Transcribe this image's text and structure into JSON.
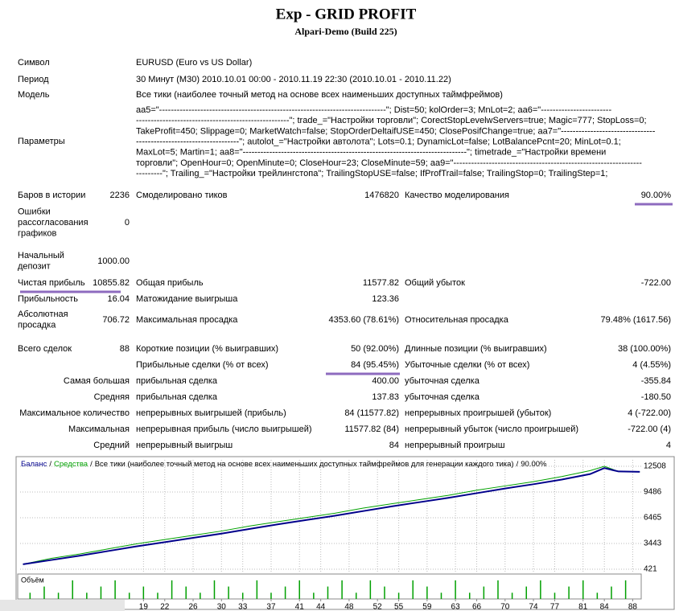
{
  "header": {
    "title": "Exp - GRID PROFIT",
    "subtitle": "Alpari-Demo (Build 225)"
  },
  "rows": [
    {
      "l1": "Символ",
      "v": "EURUSD (Euro vs US Dollar)"
    },
    {
      "l1": "Период",
      "v": "30 Минут (M30) 2010.10.01 00:00 - 2010.11.19 22:30 (2010.10.01 - 2010.11.22)"
    },
    {
      "l1": "Модель",
      "v": "Все тики (наиболее точный метод на основе всех наименьших доступных таймфреймов)"
    },
    {
      "l1": "Параметры",
      "lines": [
        "aa5=\"-----------------------------------------------------------------------------\"; Dist=50; kolOrder=3; MnLot=2; aa6=\"------------------------",
        "----------------------------------------------------\"; trade_=\"Настройки торговли\"; CorectStopLevelwServers=true; Magic=777; StopLoss=0;",
        "TakeProfit=450; Slippage=0; MarketWatch=false; StopOrderDeltaifUSE=450; ClosePosifChange=true; aa7=\"--------------------------------",
        "-----------------------------------\"; autolot_=\"Настройки автолота\"; Lots=0.1; DynamicLot=false; LotBalancePcnt=20; MinLot=0.1;",
        "MaxLot=5; Martin=1; aa8=\"----------------------------------------------------------------------------\"; timetrade_=\"Настройки времени",
        "торговли\"; OpenHour=0; OpenMinute=0; CloseHour=23; CloseMinute=59; aa9=\"----------------------------------------------------------------",
        "---------\"; Trailing_=\"Настройки трейлингстопа\"; TrailingStopUSE=false; IfProfTrail=false; TrailingStop=0; TrailingStep=1;"
      ]
    },
    {
      "l1": "Баров в истории",
      "v1": "2236",
      "l2": "Смоделировано тиков",
      "v2": "1476820",
      "l3": "Качество моделирования",
      "v3": "90.00%"
    },
    {
      "l1": [
        "Ошибки",
        "рассогласования",
        "графиков"
      ],
      "v1": "0"
    },
    {
      "l1": [
        "Начальный",
        "депозит"
      ],
      "v1": "1000.00"
    },
    {
      "l1": "Чистая прибыль",
      "v1": "10855.82",
      "l2": "Общая прибыль",
      "v2": "11577.82",
      "l3": "Общий убыток",
      "v3": "-722.00"
    },
    {
      "l1": "Прибыльность",
      "v1": "16.04",
      "l2": "Матожидание выигрыша",
      "v2": "123.36"
    },
    {
      "l1": [
        "Абсолютная",
        "просадка"
      ],
      "v1": "706.72",
      "l2": "Максимальная просадка",
      "v2": "4353.60 (78.61%)",
      "l3": "Относительная просадка",
      "v3": "79.48% (1617.56)"
    },
    {
      "l1": "Всего сделок",
      "v1": "88",
      "l2": "Короткие позиции (% выигравших)",
      "v2": "50 (92.00%)",
      "l3": "Длинные позиции (% выигравших)",
      "v3": "38 (100.00%)"
    },
    {
      "l2": "Прибыльные сделки (% от всех)",
      "v2": "84 (95.45%)",
      "l3": "Убыточные сделки (% от всех)",
      "v3": "4 (4.55%)"
    },
    {
      "l1": "Самая большая",
      "l2": "прибыльная сделка",
      "v2": "400.00",
      "l3": "убыточная сделка",
      "v3": "-355.84"
    },
    {
      "l1": "Средняя",
      "l2": "прибыльная сделка",
      "v2": "137.83",
      "l3": "убыточная сделка",
      "v3": "-180.50"
    },
    {
      "l1": "Максимальное количество",
      "l2": "непрерывных выигрышей (прибыль)",
      "v2": "84 (11577.82)",
      "l3": "непрерывных проигрышей (убыток)",
      "v3": "4 (-722.00)"
    },
    {
      "l1": "Максимальная",
      "l2": "непрерывная прибыль (число выигрышей)",
      "v2": "11577.82 (84)",
      "l3": "непрерывный убыток (число проигрышей)",
      "v3": "-722.00 (4)"
    },
    {
      "l1": "Средний",
      "l2": "непрерывный выигрыш",
      "v2": "84",
      "l3": "непрерывный проигрыш",
      "v3": "4"
    }
  ],
  "chart_data": {
    "type": "line",
    "separator": "/",
    "description": "Все тики (наиболее точный метод на основе всех наименьших доступных таймфреймов для генерации каждого тика)",
    "quality": "90.00%",
    "x": [
      2,
      6,
      10,
      14,
      18,
      22,
      26,
      30,
      34,
      38,
      42,
      46,
      50,
      54,
      58,
      62,
      66,
      70,
      74,
      78,
      82,
      84,
      86,
      89
    ],
    "series": [
      {
        "name": "Баланс",
        "color": "#00008b",
        "values": [
          1000,
          1500,
          2000,
          2550,
          3100,
          3600,
          4100,
          4600,
          5150,
          5700,
          6200,
          6700,
          7250,
          7800,
          8300,
          8800,
          9350,
          9900,
          10400,
          10950,
          11600,
          12300,
          11900,
          11855
        ]
      },
      {
        "name": "Средства",
        "color": "#00a000",
        "values": [
          1000,
          1700,
          2200,
          2800,
          3400,
          3900,
          4400,
          4900,
          5500,
          6000,
          6500,
          7000,
          7600,
          8100,
          8600,
          9100,
          9700,
          10200,
          10700,
          11300,
          12000,
          12500,
          11900,
          11855
        ]
      }
    ],
    "xlim": [
      1.6,
      89.2
    ],
    "ylim": [
      43,
      13263
    ],
    "yticks": [
      421,
      3443,
      6465,
      9486,
      12508
    ],
    "xticks": [
      19,
      22,
      26,
      30,
      33,
      37,
      41,
      44,
      48,
      52,
      55,
      59,
      63,
      66,
      70,
      74,
      77,
      81,
      84,
      88
    ],
    "grid": true,
    "volume": {
      "name": "Объём",
      "color": "#00a000",
      "ylim": [
        0,
        0.35
      ],
      "x": [
        3,
        5,
        7,
        9,
        11,
        13,
        15,
        17,
        19,
        21,
        23,
        25,
        27,
        29,
        31,
        33,
        35,
        37,
        39,
        41,
        43,
        45,
        47,
        49,
        51,
        53,
        55,
        57,
        59,
        61,
        63,
        65,
        67,
        69,
        71,
        73,
        75,
        77,
        79,
        81,
        83,
        85,
        87
      ],
      "values": [
        0.1,
        0.2,
        0.1,
        0.3,
        0.1,
        0.2,
        0.3,
        0.1,
        0.2,
        0.1,
        0.3,
        0.2,
        0.1,
        0.3,
        0.2,
        0.1,
        0.3,
        0.1,
        0.2,
        0.3,
        0.1,
        0.2,
        0.3,
        0.1,
        0.3,
        0.2,
        0.1,
        0.3,
        0.2,
        0.1,
        0.3,
        0.1,
        0.2,
        0.3,
        0.1,
        0.2,
        0.3,
        0.1,
        0.2,
        0.3,
        0.1,
        0.2,
        0.3
      ]
    }
  }
}
